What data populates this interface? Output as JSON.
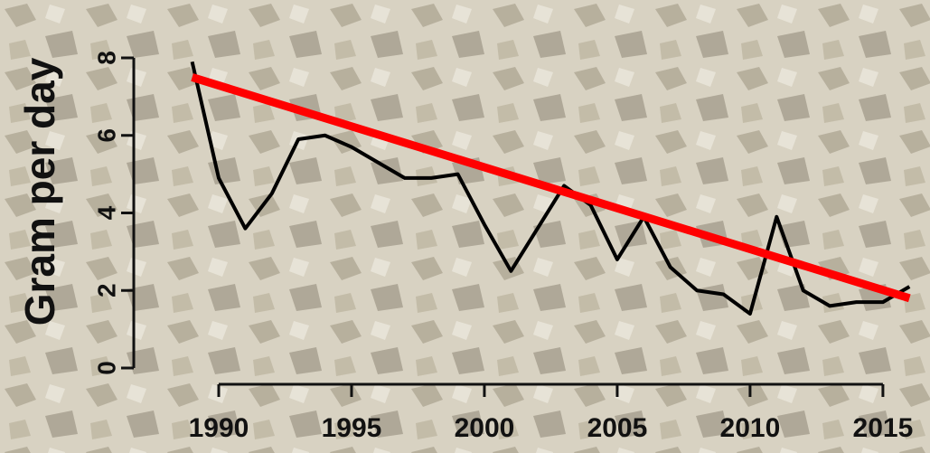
{
  "chart_data": {
    "type": "line",
    "y_label": "Gram per day",
    "x": [
      1989,
      1990,
      1991,
      1992,
      1993,
      1994,
      1995,
      1996,
      1997,
      1998,
      1999,
      2000,
      2001,
      2002,
      2003,
      2004,
      2005,
      2006,
      2007,
      2008,
      2009,
      2010,
      2011,
      2012,
      2013,
      2014,
      2015,
      2016
    ],
    "series": [
      {
        "color": "#000000",
        "values": [
          7.9,
          4.9,
          3.6,
          4.5,
          5.9,
          6.0,
          5.7,
          5.3,
          4.9,
          4.9,
          5.0,
          3.7,
          2.5,
          3.6,
          4.7,
          4.2,
          2.8,
          3.9,
          2.6,
          2.0,
          1.9,
          1.4,
          3.9,
          2.0,
          1.6,
          1.7,
          1.7,
          2.1
        ]
      }
    ],
    "trend": {
      "color": "#ff0000",
      "x": [
        1989,
        2016
      ],
      "values": [
        7.5,
        1.8
      ]
    },
    "xlim": [
      1988,
      2016.5
    ],
    "ylim": [
      0,
      8
    ],
    "xticks": [
      1990,
      1995,
      2000,
      2005,
      2010,
      2015
    ],
    "yticks": [
      0,
      2,
      4,
      6,
      8
    ]
  }
}
